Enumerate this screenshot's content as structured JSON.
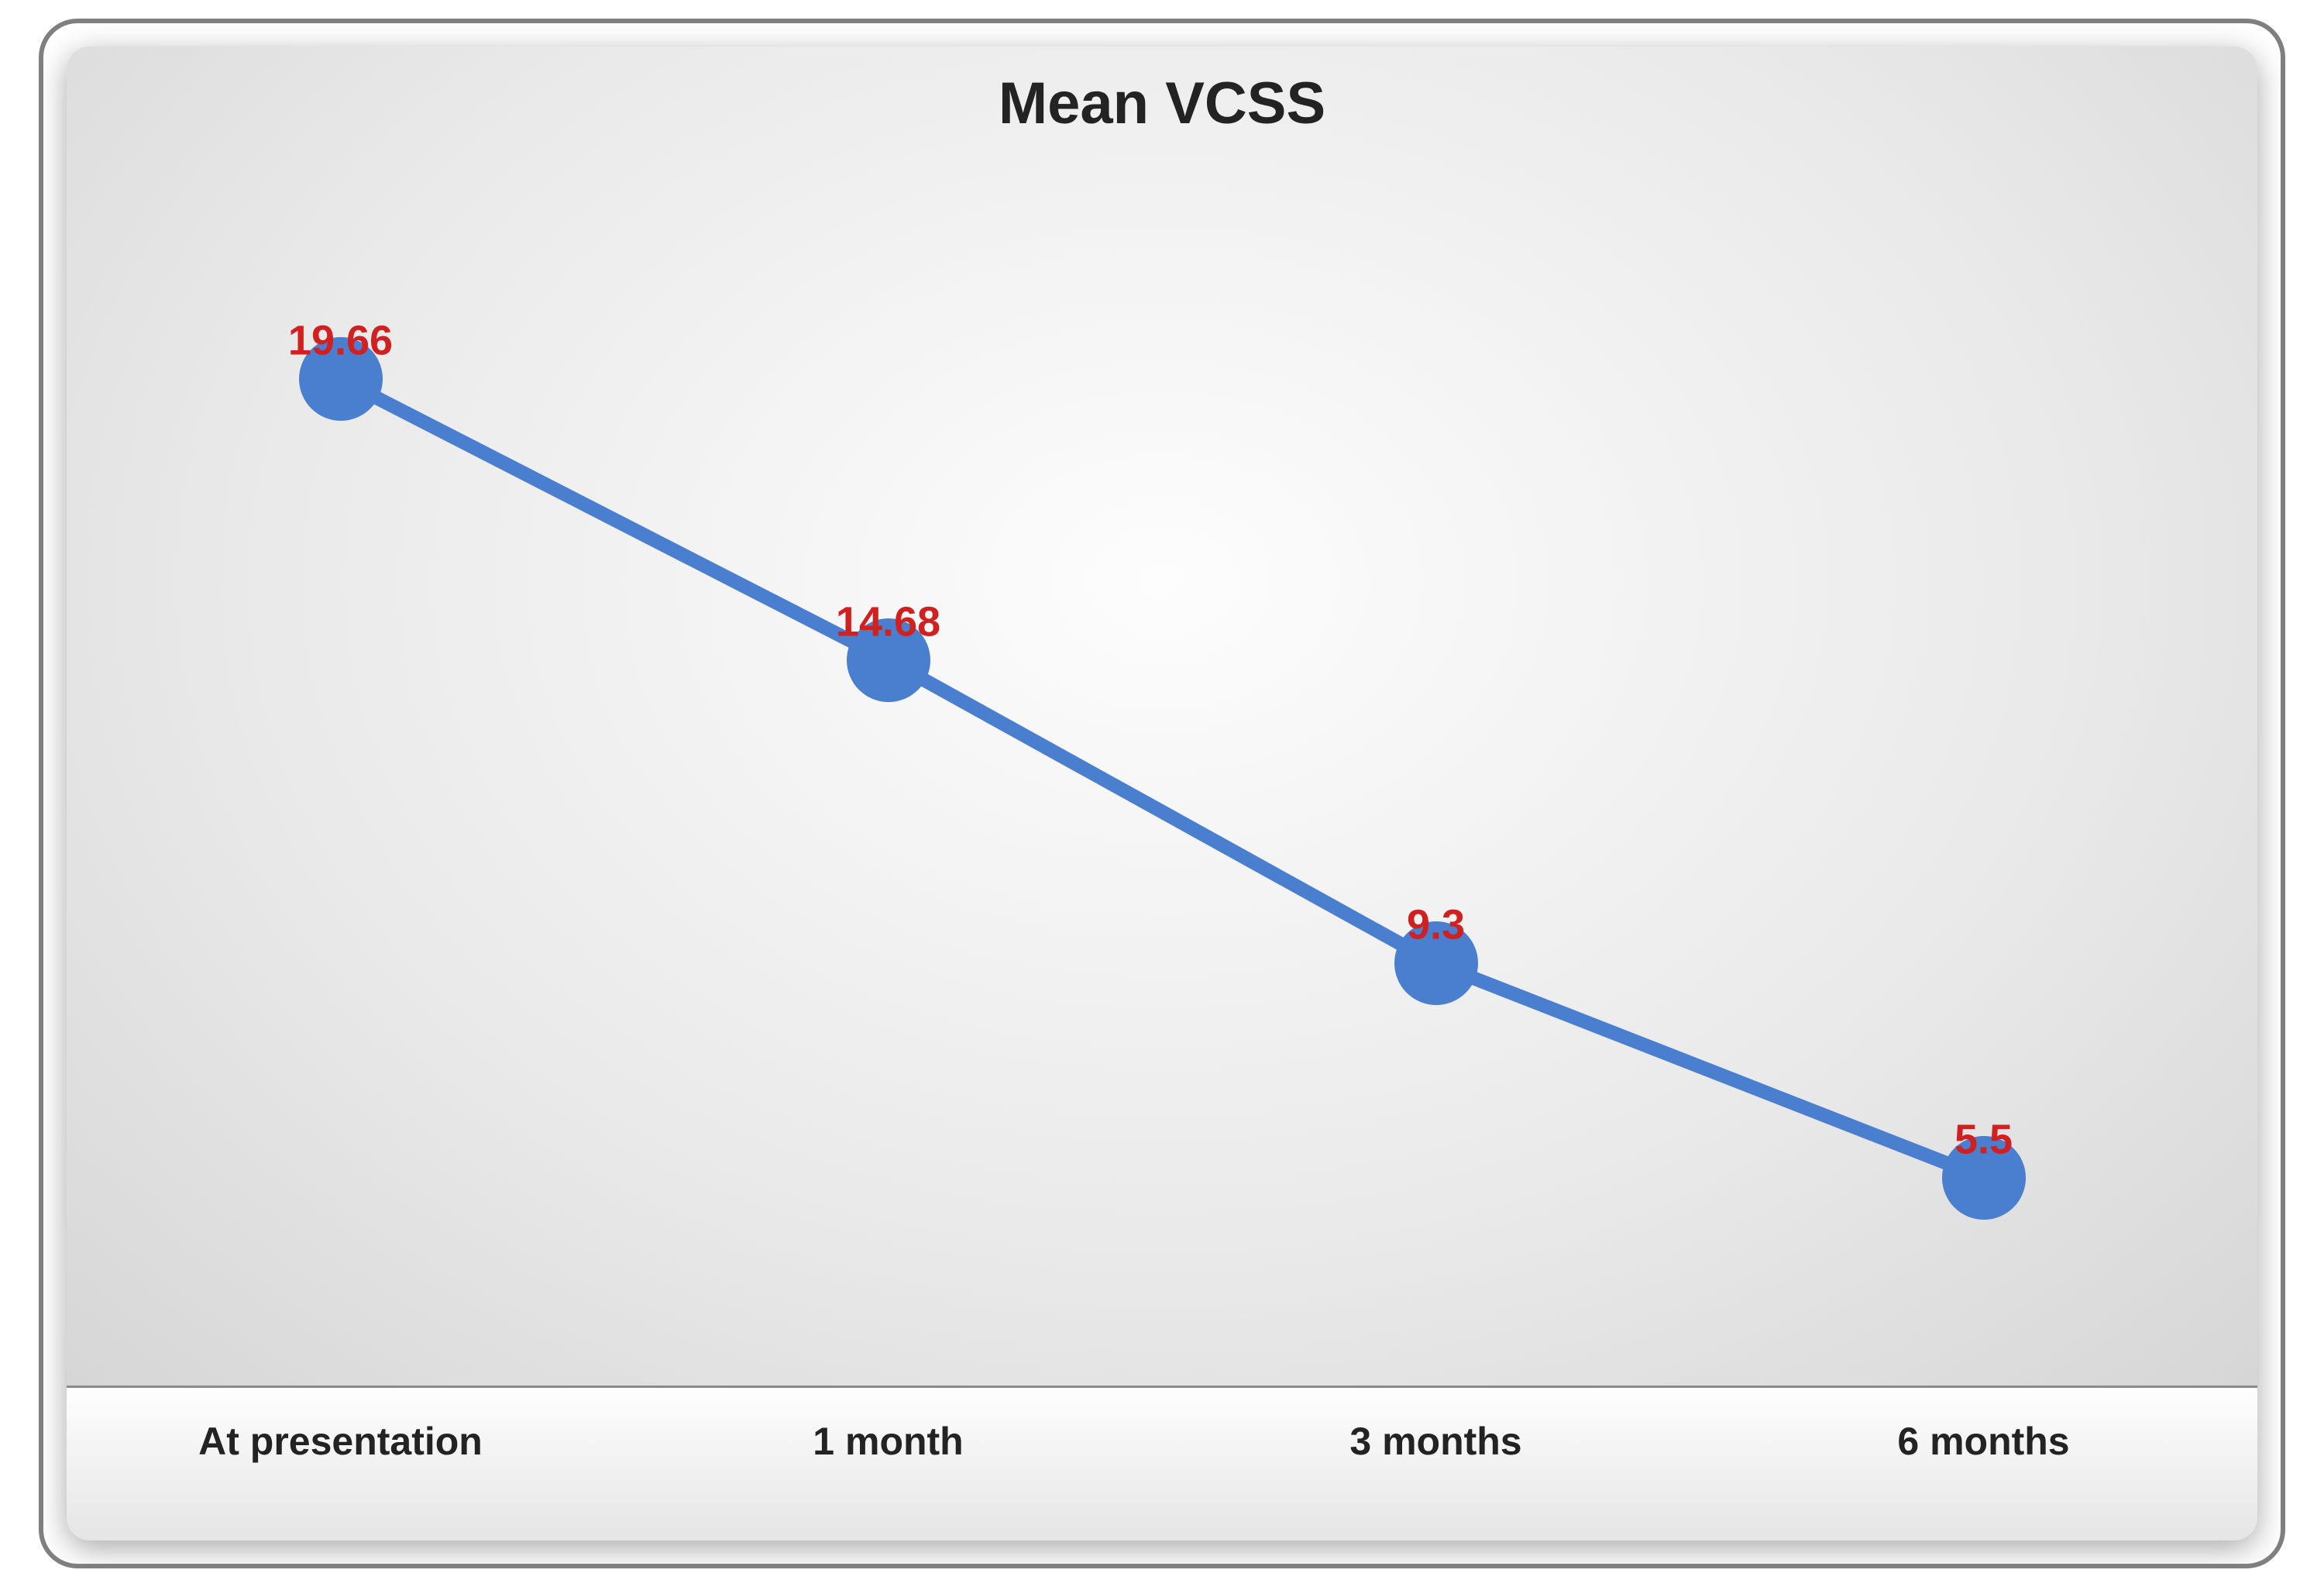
{
  "chart": {
    "type": "line",
    "title": "Mean VCSS",
    "title_fontsize": 76,
    "title_color": "#232323",
    "categories": [
      "At presentation",
      "1 month",
      "3 months",
      "6 months"
    ],
    "values": [
      19.66,
      14.68,
      9.3,
      5.5
    ],
    "value_labels": [
      "19.66",
      "14.68",
      "9.3",
      "5.5"
    ],
    "line_color": "#4a7ecf",
    "line_width": 18,
    "marker_color": "#4a7ecf",
    "marker_radius": 54,
    "data_label_color": "#d02020",
    "data_label_fontsize": 54,
    "axis_label_fontsize": 50,
    "axis_label_color": "#232323",
    "background_gradient_inner": "#fdfdfd",
    "background_gradient_outer": "#d6d6d6",
    "axis_band_top": "#fefefe",
    "axis_band_bottom": "#e5e5e5",
    "axis_line_color": "#8a8a8a",
    "frame_border_color": "#7f7f7f",
    "y_scale_min": 3,
    "y_scale_max": 22,
    "x_positions_pct": [
      12.5,
      37.5,
      62.5,
      87.5
    ],
    "plot_top_pad_pct": 15,
    "plot_bottom_pad_pct": 5
  }
}
